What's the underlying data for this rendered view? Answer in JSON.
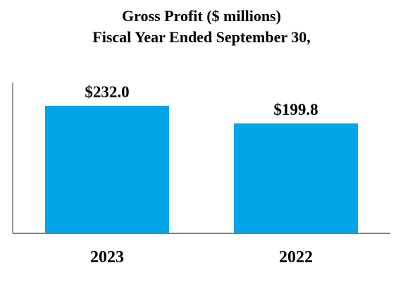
{
  "chart_data": {
    "type": "bar",
    "title": "Gross Profit ($ millions)",
    "subtitle": "Fiscal Year Ended September 30,",
    "categories": [
      "2023",
      "2022"
    ],
    "values": [
      232.0,
      199.8
    ],
    "data_labels": [
      "$232.0",
      "$199.8"
    ],
    "xlabel": "",
    "ylabel": "",
    "ylim": [
      0,
      300
    ],
    "grid": false,
    "legend": "none",
    "bar_color": "#00a6e8",
    "axis_color": "#7f7f7f"
  }
}
